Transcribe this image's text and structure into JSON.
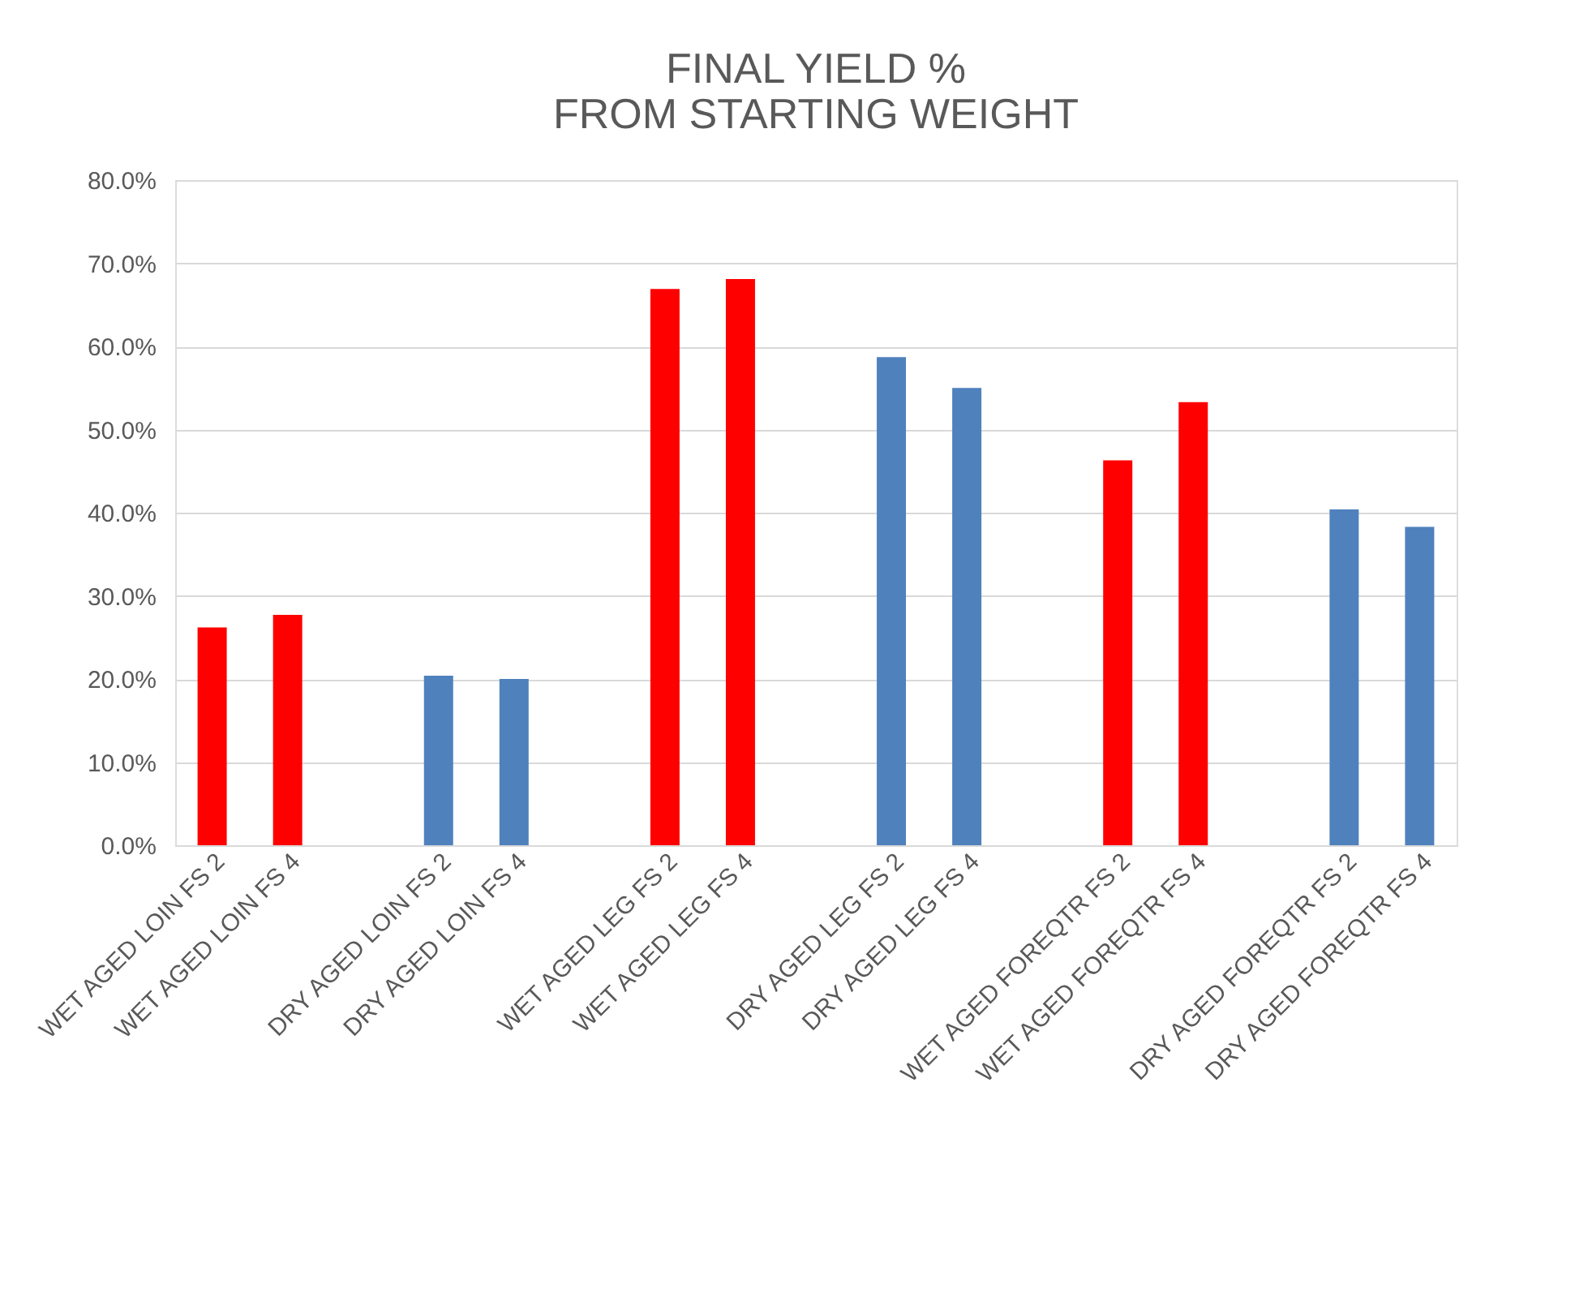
{
  "chart_data": {
    "type": "bar",
    "title": "FINAL YIELD %\nFROM STARTING WEIGHT",
    "categories": [
      "WET AGED LOIN FS 2",
      "WET AGED LOIN  FS 4",
      null,
      "DRY AGED LOIN FS 2",
      "DRY AGED LOIN  FS 4",
      null,
      "WET AGED LEG FS 2",
      "WET AGED LEG  FS 4",
      null,
      "DRY AGED LEG FS 2",
      "DRY AGED LEG  FS 4",
      null,
      "WET AGED FOREQTR  FS 2",
      "WET AGED FOREQTR FS 4",
      null,
      "DRY AGED FOREQTR FS 2",
      "DRY AGED FOREQTR  FS 4"
    ],
    "values": [
      26.2,
      27.7,
      null,
      20.4,
      20.0,
      null,
      66.9,
      68.1,
      null,
      58.7,
      55.0,
      null,
      46.3,
      53.3,
      null,
      40.4,
      38.3
    ],
    "colors": [
      "#ff0000",
      "#ff0000",
      null,
      "#4f81bd",
      "#4f81bd",
      null,
      "#ff0000",
      "#ff0000",
      null,
      "#4f81bd",
      "#4f81bd",
      null,
      "#ff0000",
      "#ff0000",
      null,
      "#4f81bd",
      "#4f81bd"
    ],
    "ylim": [
      0,
      80
    ],
    "yticks": [
      {
        "value": 0,
        "label": "0.0%"
      },
      {
        "value": 10,
        "label": "10.0%"
      },
      {
        "value": 20,
        "label": "20.0%"
      },
      {
        "value": 30,
        "label": "30.0%"
      },
      {
        "value": 40,
        "label": "40.0%"
      },
      {
        "value": 50,
        "label": "50.0%"
      },
      {
        "value": 60,
        "label": "60.0%"
      },
      {
        "value": 70,
        "label": "70.0%"
      },
      {
        "value": 80,
        "label": "80.0%"
      }
    ],
    "grid": "y"
  }
}
